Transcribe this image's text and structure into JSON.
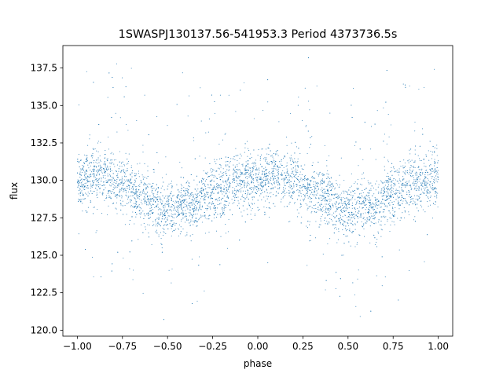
{
  "chart_data": {
    "type": "scatter",
    "title": "1SWASPJ130137.56-541953.3 Period 4373736.5s",
    "xlabel": "phase",
    "ylabel": "flux",
    "xlim": [
      -1.08,
      1.08
    ],
    "ylim": [
      119.6,
      139.0
    ],
    "xticks": [
      -1.0,
      -0.75,
      -0.5,
      -0.25,
      0.0,
      0.25,
      0.5,
      0.75,
      1.0
    ],
    "xtick_labels": [
      "−1.00",
      "−0.75",
      "−0.50",
      "−0.25",
      "0.00",
      "0.25",
      "0.50",
      "0.75",
      "1.00"
    ],
    "yticks": [
      120.0,
      122.5,
      125.0,
      127.5,
      130.0,
      132.5,
      135.0,
      137.5
    ],
    "ytick_labels": [
      "120.0",
      "122.5",
      "125.0",
      "127.5",
      "130.0",
      "132.5",
      "135.0",
      "137.5"
    ],
    "grid": false,
    "point_color": "#1f77b4",
    "series": [
      {
        "phase_range": [
          -1.0,
          1.0
        ],
        "profile": [
          {
            "x": -1.0,
            "y": 129.8
          },
          {
            "x": -0.9,
            "y": 130.3
          },
          {
            "x": -0.8,
            "y": 129.9
          },
          {
            "x": -0.7,
            "y": 129.4
          },
          {
            "x": -0.6,
            "y": 128.6
          },
          {
            "x": -0.55,
            "y": 127.9
          },
          {
            "x": -0.5,
            "y": 127.8
          },
          {
            "x": -0.45,
            "y": 128.2
          },
          {
            "x": -0.4,
            "y": 128.3
          },
          {
            "x": -0.35,
            "y": 128.0
          },
          {
            "x": -0.3,
            "y": 128.9
          },
          {
            "x": -0.2,
            "y": 129.5
          },
          {
            "x": -0.1,
            "y": 129.9
          },
          {
            "x": 0.0,
            "y": 130.1
          },
          {
            "x": 0.1,
            "y": 130.2
          },
          {
            "x": 0.2,
            "y": 129.9
          },
          {
            "x": 0.3,
            "y": 129.4
          },
          {
            "x": 0.4,
            "y": 128.6
          },
          {
            "x": 0.45,
            "y": 127.9
          },
          {
            "x": 0.5,
            "y": 127.8
          },
          {
            "x": 0.55,
            "y": 128.2
          },
          {
            "x": 0.6,
            "y": 128.3
          },
          {
            "x": 0.65,
            "y": 128.0
          },
          {
            "x": 0.7,
            "y": 128.9
          },
          {
            "x": 0.8,
            "y": 129.5
          },
          {
            "x": 0.9,
            "y": 129.9
          },
          {
            "x": 1.0,
            "y": 130.1
          }
        ]
      }
    ]
  }
}
